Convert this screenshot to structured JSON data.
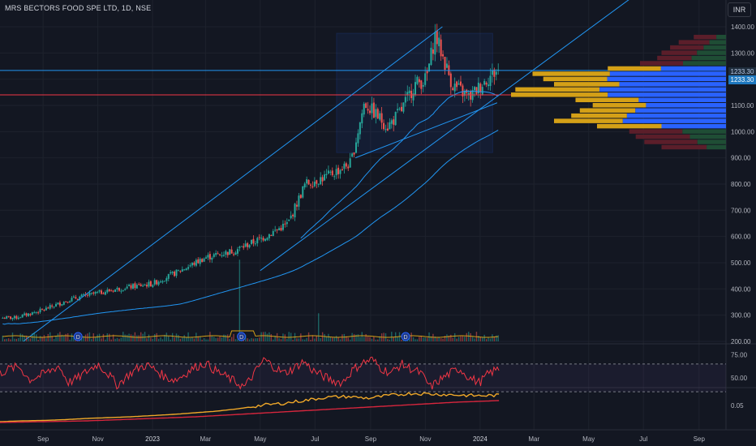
{
  "header": {
    "symbol": "MRS BECTORS FOOD SPE LTD, 1D, NSE",
    "currency": "INR"
  },
  "price_tags": {
    "upper": "1233.30",
    "lower": "1233.30"
  },
  "colors": {
    "background": "#131722",
    "up": "#26a69a",
    "down": "#ef5350",
    "channel": "#2196f3",
    "rsi": "#f23645",
    "ratio": "#f0a829",
    "ratio_ma": "#d7263d",
    "volume_ma": "#d4a017"
  },
  "chart_data": [
    {
      "type": "candlestick",
      "ylabel": "",
      "price_scale": {
        "ticks": [
          "1400.00",
          "1300.00",
          "1200.00",
          "1100.00",
          "1000.00",
          "900.00",
          "800.00",
          "700.00",
          "600.00",
          "500.00",
          "400.00",
          "300.00",
          "200.00"
        ]
      },
      "x_ticks": [
        "Sep",
        "Nov",
        "2023",
        "Mar",
        "May",
        "Jul",
        "Sep",
        "Nov",
        "2024",
        "Mar",
        "May",
        "Jul",
        "Sep"
      ],
      "grid": true,
      "anchor_closes": [
        {
          "x": "2022-08-01",
          "close": 290
        },
        {
          "x": "2022-09-01",
          "close": 320
        },
        {
          "x": "2022-10-01",
          "close": 360
        },
        {
          "x": "2022-11-01",
          "close": 385
        },
        {
          "x": "2022-12-01",
          "close": 405
        },
        {
          "x": "2023-01-01",
          "close": 420
        },
        {
          "x": "2023-02-01",
          "close": 470
        },
        {
          "x": "2023-03-01",
          "close": 520
        },
        {
          "x": "2023-04-01",
          "close": 545
        },
        {
          "x": "2023-05-01",
          "close": 590
        },
        {
          "x": "2023-06-01",
          "close": 650
        },
        {
          "x": "2023-06-20",
          "close": 800
        },
        {
          "x": "2023-07-15",
          "close": 830
        },
        {
          "x": "2023-08-10",
          "close": 880
        },
        {
          "x": "2023-08-25",
          "close": 1110
        },
        {
          "x": "2023-09-20",
          "close": 1020
        },
        {
          "x": "2023-10-05",
          "close": 1080
        },
        {
          "x": "2023-10-20",
          "close": 1180
        },
        {
          "x": "2023-11-02",
          "close": 1200
        },
        {
          "x": "2023-11-12",
          "close": 1370
        },
        {
          "x": "2023-12-01",
          "close": 1180
        },
        {
          "x": "2023-12-20",
          "close": 1130
        },
        {
          "x": "2024-01-08",
          "close": 1200
        },
        {
          "x": "2024-01-20",
          "close": 1233
        }
      ],
      "annotations": {
        "horizontal_lines": [
          {
            "price": 1233.3,
            "color": "#2196f3"
          },
          {
            "price": 1140,
            "color": "#f23645"
          }
        ],
        "trend_lines": [
          {
            "from": [
              "2022-08-10",
              200
            ],
            "to": [
              "2023-11-20",
              1400
            ]
          },
          {
            "from": [
              "2023-05-01",
              470
            ],
            "to": [
              "2024-09-01",
              1700
            ]
          },
          {
            "from": [
              "2023-08-15",
              900
            ],
            "to": [
              "2024-01-20",
              1110
            ]
          }
        ],
        "volume_profile_range": {
          "from": "2023-07-25",
          "to": "2024-01-15",
          "low": 920,
          "high": 1375
        },
        "dividend_markers": [
          "2022-10-10",
          "2023-04-10",
          "2023-10-10"
        ],
        "dividend_label": "D"
      },
      "volume_profile_right": {
        "levels_top_to_bottom": [
          1360,
          1340,
          1320,
          1300,
          1280,
          1260,
          1240,
          1220,
          1200,
          1180,
          1160,
          1140,
          1120,
          1100,
          1080,
          1060,
          1040,
          1020,
          1000,
          980,
          960,
          940
        ],
        "buy_share": [
          0.3,
          0.35,
          0.4,
          0.45,
          0.5,
          0.5,
          0.55,
          0.6,
          0.65,
          0.62,
          0.6,
          0.55,
          0.58,
          0.6,
          0.62,
          0.64,
          0.6,
          0.5,
          0.45,
          0.4,
          0.35,
          0.3
        ],
        "relative_volume": [
          0.15,
          0.22,
          0.26,
          0.3,
          0.32,
          0.4,
          0.55,
          0.9,
          0.85,
          0.8,
          0.98,
          1.0,
          0.7,
          0.62,
          0.68,
          0.72,
          0.8,
          0.6,
          0.45,
          0.42,
          0.38,
          0.3
        ]
      }
    },
    {
      "type": "line",
      "name": "",
      "y_ticks": [
        "75.00",
        "50.00"
      ],
      "band": [
        35,
        65
      ],
      "values": [
        55,
        60,
        62,
        48,
        52,
        57,
        63,
        45,
        50,
        58,
        65,
        55,
        42,
        52,
        60,
        64,
        58,
        50,
        48,
        55,
        62,
        66,
        58,
        52,
        46,
        40,
        55,
        70,
        62,
        55,
        60,
        68,
        58,
        52,
        47,
        45,
        58,
        66,
        70,
        60,
        55,
        65,
        60,
        55,
        40,
        48,
        55,
        60,
        50,
        45,
        55,
        60
      ]
    },
    {
      "type": "line",
      "name": "",
      "y_ticks": [
        "0.05"
      ],
      "series": [
        {
          "role": "ratio",
          "values": [
            0.01,
            0.012,
            0.013,
            0.015,
            0.018,
            0.02,
            0.022,
            0.025,
            0.028,
            0.032,
            0.036,
            0.042,
            0.05,
            0.055,
            0.062,
            0.07,
            0.072,
            0.068,
            0.075,
            0.08,
            0.078,
            0.076,
            0.074,
            0.075
          ]
        },
        {
          "role": "ratio_ma",
          "values": [
            0.008,
            0.009,
            0.01,
            0.011,
            0.012,
            0.014,
            0.016,
            0.018,
            0.02,
            0.022,
            0.025,
            0.028,
            0.031,
            0.034,
            0.037,
            0.04,
            0.043,
            0.046,
            0.049,
            0.052,
            0.055,
            0.058,
            0.06,
            0.062
          ]
        }
      ]
    }
  ]
}
